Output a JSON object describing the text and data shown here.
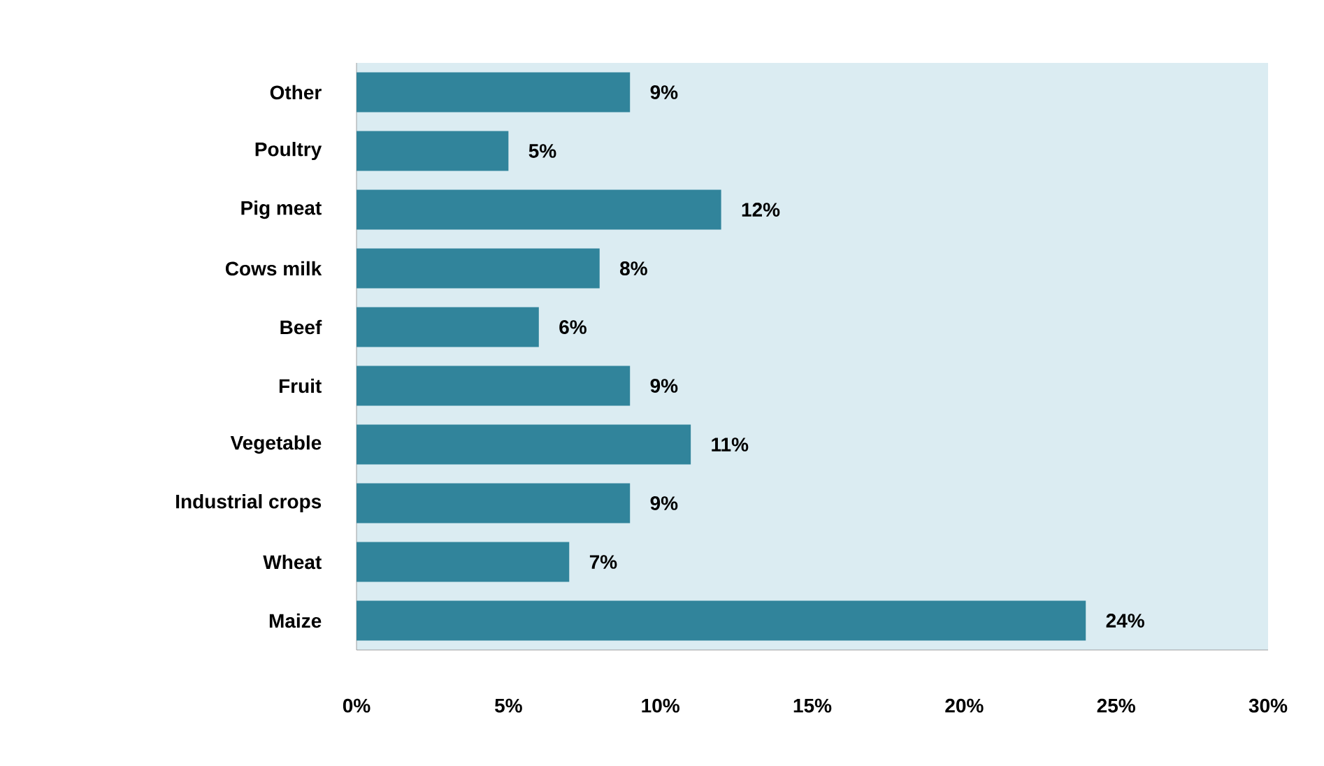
{
  "chart_data": {
    "type": "bar",
    "orientation": "horizontal",
    "categories": [
      "Other",
      "Poultry",
      "Pig meat",
      "Cows milk",
      "Beef",
      "Fruit",
      "Vegetable",
      "Industrial crops",
      "Wheat",
      "Maize"
    ],
    "values": [
      9,
      5,
      12,
      8,
      6,
      9,
      11,
      9,
      7,
      24
    ],
    "value_labels": [
      "9%",
      "5%",
      "12%",
      "8%",
      "6%",
      "9%",
      "11%",
      "9%",
      "7%",
      "24%"
    ],
    "color": "#31849b",
    "xlim": [
      0,
      30
    ],
    "xticks": [
      {
        "value": 0,
        "label": "0%"
      },
      {
        "value": 5,
        "label": "5%"
      },
      {
        "value": 10,
        "label": "10%"
      },
      {
        "value": 15,
        "label": "15%"
      },
      {
        "value": 20,
        "label": "20%"
      },
      {
        "value": 25,
        "label": "25%"
      },
      {
        "value": 30,
        "label": "30%"
      }
    ]
  }
}
